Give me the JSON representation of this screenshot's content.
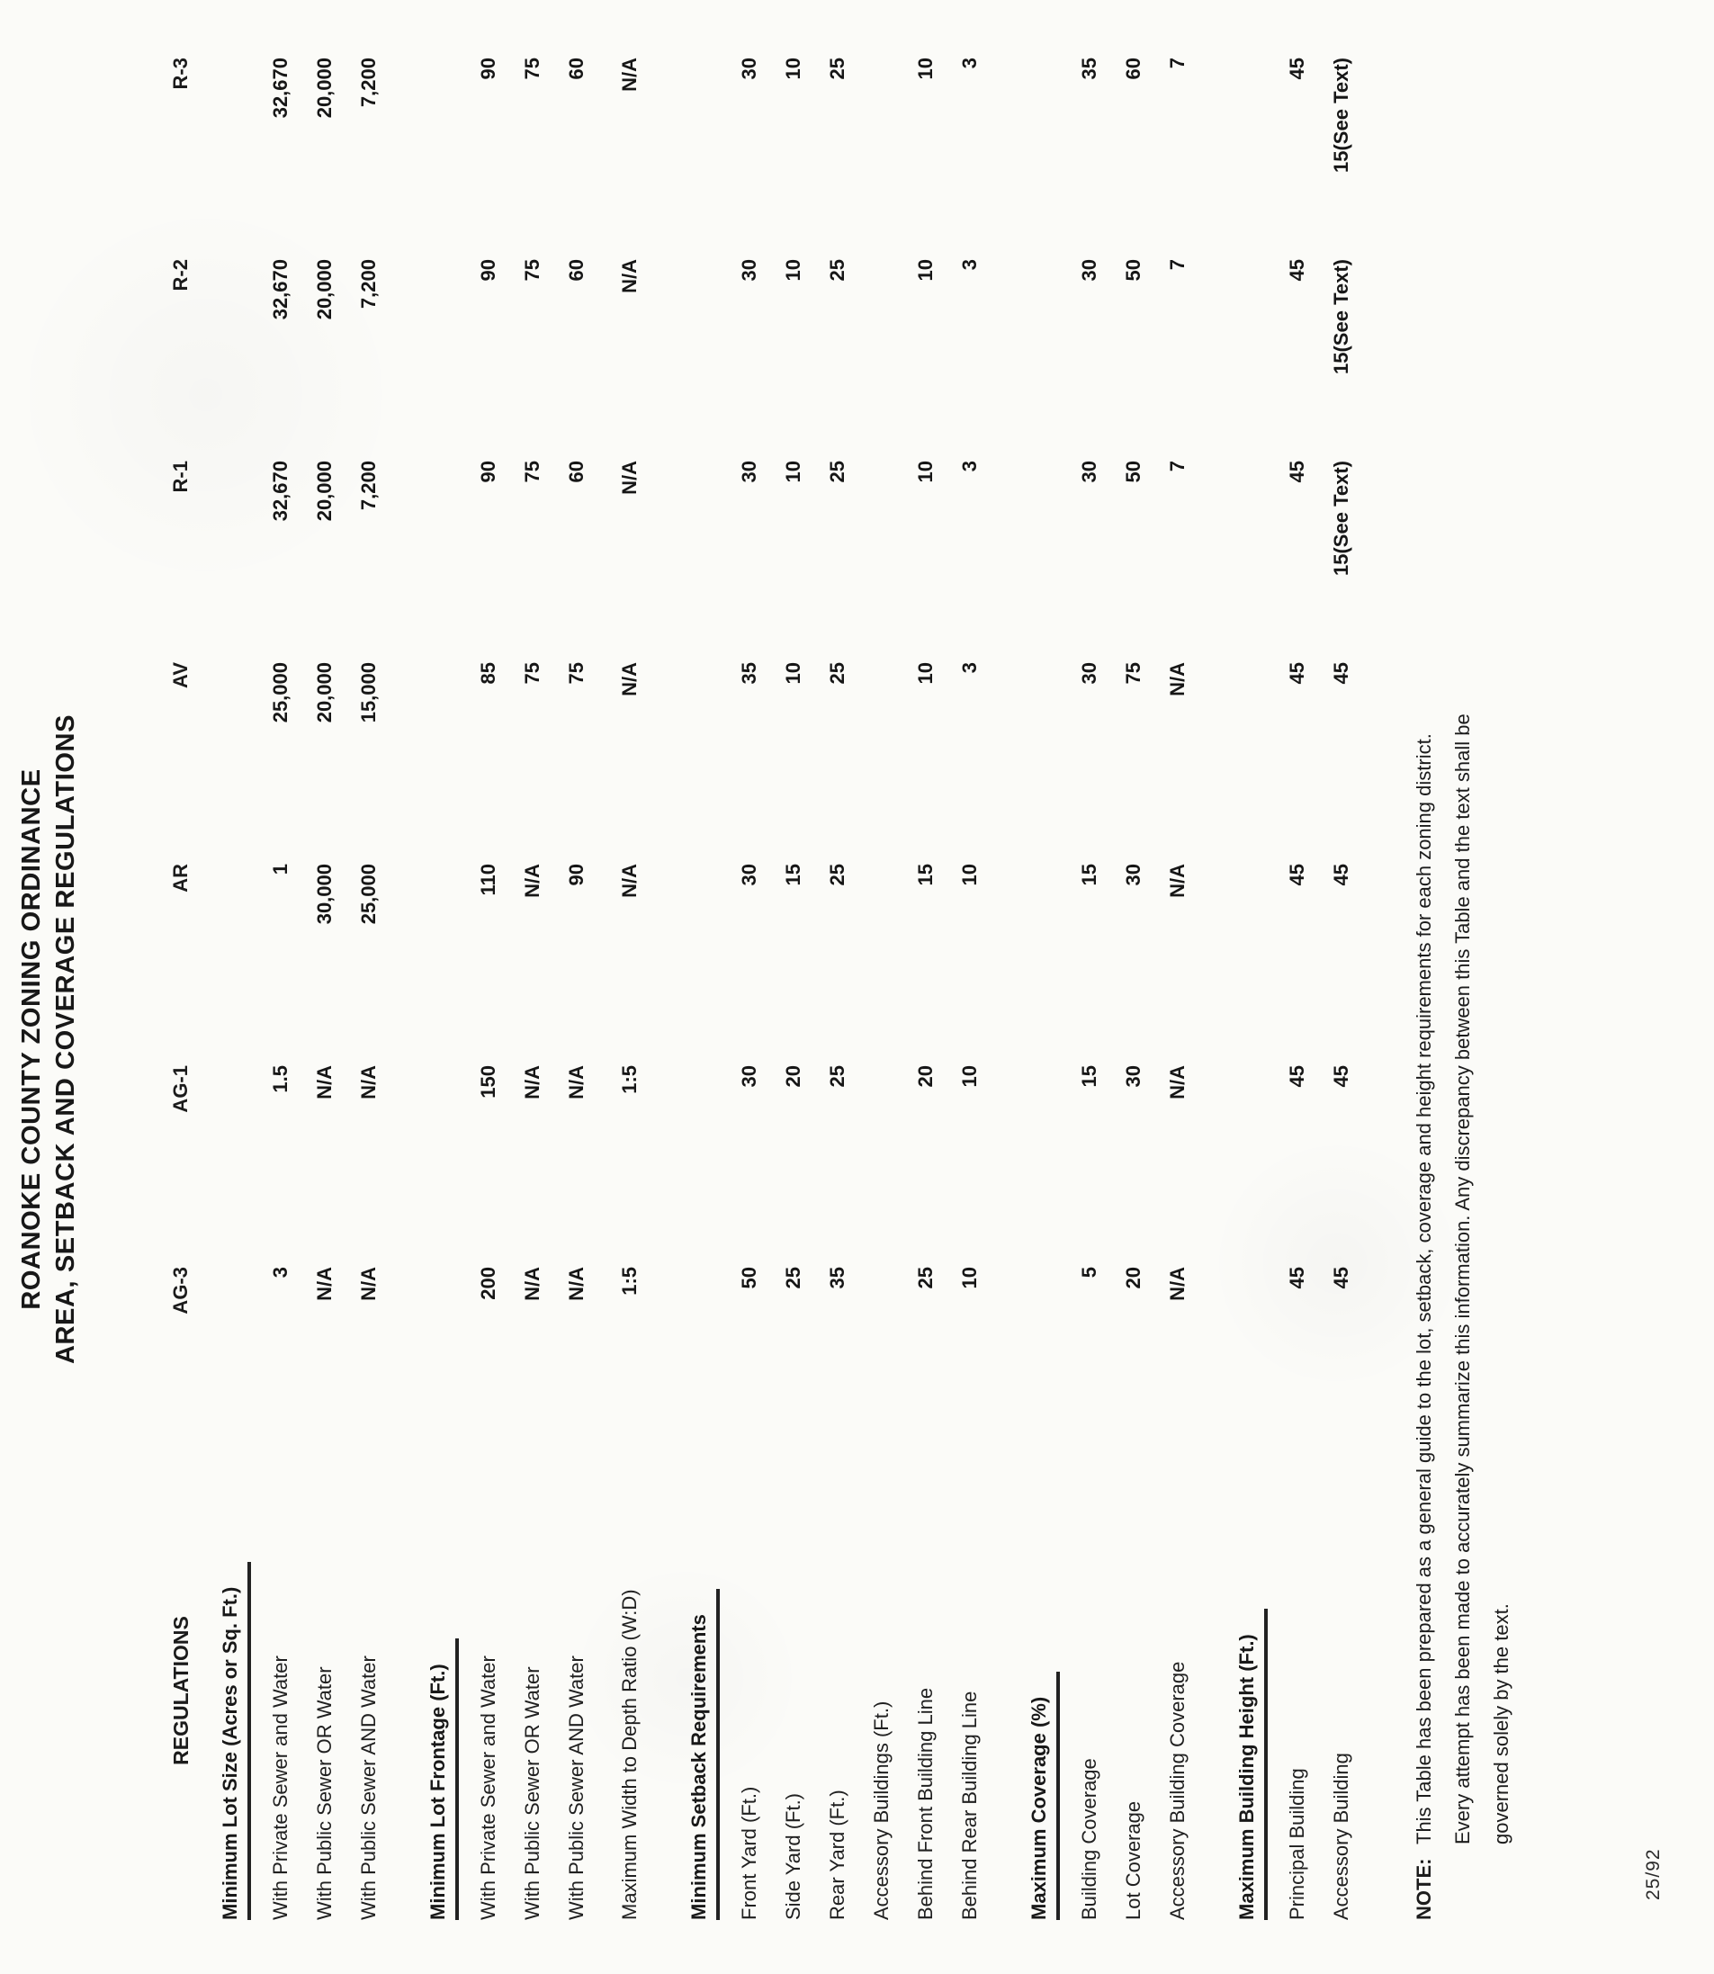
{
  "title": {
    "line1": "ROANOKE COUNTY ZONING ORDINANCE",
    "line2": "AREA, SETBACK AND COVERAGE REGULATIONS"
  },
  "table": {
    "header_label": "REGULATIONS",
    "districts": [
      "AG-3",
      "AG-1",
      "AR",
      "AV",
      "R-1",
      "R-2",
      "R-3"
    ],
    "rows": [
      {
        "type": "section",
        "label": "Minimum Lot Size (Acres or Sq. Ft.)"
      },
      {
        "type": "data",
        "label": "With Private Sewer and Water",
        "values": [
          "3",
          "1.5",
          "1",
          "25,000",
          "32,670",
          "32,670",
          "32,670"
        ]
      },
      {
        "type": "data",
        "label": "With Public Sewer OR Water",
        "values": [
          "N/A",
          "N/A",
          "30,000",
          "20,000",
          "20,000",
          "20,000",
          "20,000"
        ]
      },
      {
        "type": "data",
        "label": "With Public Sewer AND Water",
        "values": [
          "N/A",
          "N/A",
          "25,000",
          "15,000",
          "7,200",
          "7,200",
          "7,200"
        ]
      },
      {
        "type": "section",
        "label": "Minimum Lot Frontage (Ft.)"
      },
      {
        "type": "data",
        "label": "With Private Sewer and Water",
        "values": [
          "200",
          "150",
          "110",
          "85",
          "90",
          "90",
          "90"
        ]
      },
      {
        "type": "data",
        "label": "With Public Sewer OR Water",
        "values": [
          "N/A",
          "N/A",
          "N/A",
          "75",
          "75",
          "75",
          "75"
        ]
      },
      {
        "type": "data",
        "label": "With Public Sewer AND Water",
        "values": [
          "N/A",
          "N/A",
          "90",
          "75",
          "60",
          "60",
          "60"
        ]
      },
      {
        "type": "data",
        "label": "Maximum Width to Depth Ratio (W:D)",
        "values": [
          "1:5",
          "1:5",
          "N/A",
          "N/A",
          "N/A",
          "N/A",
          "N/A"
        ],
        "gap": true
      },
      {
        "type": "section",
        "label": "Minimum Setback Requirements"
      },
      {
        "type": "data",
        "label": "Front Yard (Ft.)",
        "values": [
          "50",
          "30",
          "30",
          "35",
          "30",
          "30",
          "30"
        ]
      },
      {
        "type": "data",
        "label": "Side Yard (Ft.)",
        "values": [
          "25",
          "20",
          "15",
          "10",
          "10",
          "10",
          "10"
        ]
      },
      {
        "type": "data",
        "label": "Rear Yard (Ft.)",
        "values": [
          "35",
          "25",
          "25",
          "25",
          "25",
          "25",
          "25"
        ]
      },
      {
        "type": "data",
        "label": "Accessory Buildings (Ft.)",
        "values": [
          "",
          "",
          "",
          "",
          "",
          "",
          ""
        ]
      },
      {
        "type": "data",
        "label": "Behind Front Building Line",
        "values": [
          "25",
          "20",
          "15",
          "10",
          "10",
          "10",
          "10"
        ]
      },
      {
        "type": "data",
        "label": "Behind Rear Building Line",
        "values": [
          "10",
          "10",
          "10",
          "3",
          "3",
          "3",
          "3"
        ]
      },
      {
        "type": "section",
        "label": "Maximum Coverage (%)"
      },
      {
        "type": "data",
        "label": "Building Coverage",
        "values": [
          "5",
          "15",
          "15",
          "30",
          "30",
          "30",
          "35"
        ]
      },
      {
        "type": "data",
        "label": "Lot Coverage",
        "values": [
          "20",
          "30",
          "30",
          "75",
          "50",
          "50",
          "60"
        ]
      },
      {
        "type": "data",
        "label": "Accessory Building Coverage",
        "values": [
          "N/A",
          "N/A",
          "N/A",
          "N/A",
          "7",
          "7",
          "7"
        ]
      },
      {
        "type": "section",
        "label": "Maximum Building Height (Ft.)"
      },
      {
        "type": "data",
        "label": "Principal Building",
        "values": [
          "45",
          "45",
          "45",
          "45",
          "45",
          "45",
          "45"
        ]
      },
      {
        "type": "data",
        "label": "Accessory Building",
        "values": [
          "45",
          "45",
          "45",
          "45",
          "15(See Text)",
          "15(See Text)",
          "15(See Text)"
        ]
      }
    ]
  },
  "note": {
    "prefix": "NOTE:",
    "lines": [
      "This Table has been prepared as a general guide to the lot, setback, coverage and height requirements for each zoning district.",
      "Every attempt has been made to accurately summarize this information.  Any discrepancy between this Table and the text shall be",
      "governed solely by the text."
    ]
  },
  "footer": "25/92"
}
